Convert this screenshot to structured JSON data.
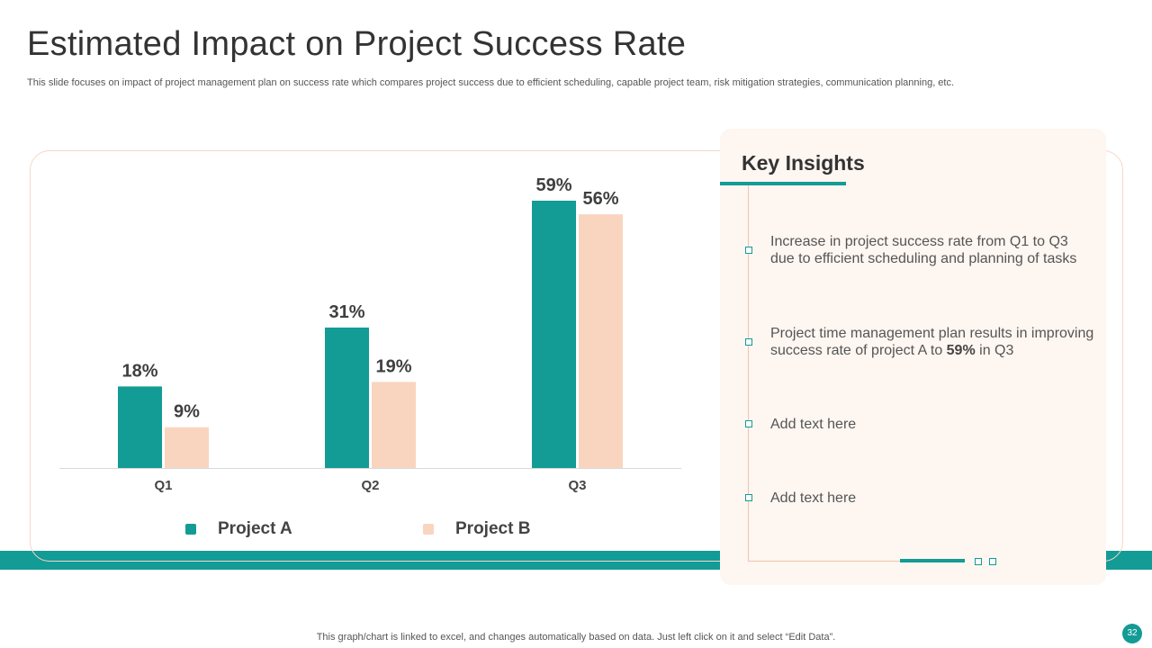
{
  "slide": {
    "title": "Estimated Impact on Project Success Rate",
    "subtitle": "This slide focuses on impact of project management plan on success rate which compares project success due to efficient scheduling, capable project team, risk mitigation strategies, communication planning, etc.",
    "footer_note": "This graph/chart is linked to excel,  and changes automatically based on data. Just left click on it and select “Edit Data”.",
    "page_number": "32"
  },
  "colors": {
    "project_a": "#139b95",
    "project_b": "#f9d5c0",
    "frame": "#f4d8c8",
    "panel": "#fdf6f1"
  },
  "chart_data": {
    "type": "bar",
    "title": "",
    "xlabel": "",
    "ylabel": "",
    "categories": [
      "Q1",
      "Q2",
      "Q3"
    ],
    "series": [
      {
        "name": "Project A",
        "values": [
          18,
          31,
          59
        ],
        "labels": [
          "18%",
          "31%",
          "59%"
        ]
      },
      {
        "name": "Project B",
        "values": [
          9,
          19,
          56
        ],
        "labels": [
          "9%",
          "19%",
          "56%"
        ]
      }
    ],
    "ylim": [
      0,
      59
    ],
    "grid": false,
    "legend_position": "bottom"
  },
  "insights": {
    "title": "Key Insights",
    "items": [
      {
        "text": "Increase  in project success rate from Q1 to Q3 due to efficient scheduling and planning of tasks"
      },
      {
        "text_before": "Project time management plan results in improving success rate of project A to ",
        "bold": "59%",
        "text_after": " in Q3"
      },
      {
        "text": "Add text here"
      },
      {
        "text": "Add text here"
      }
    ]
  }
}
